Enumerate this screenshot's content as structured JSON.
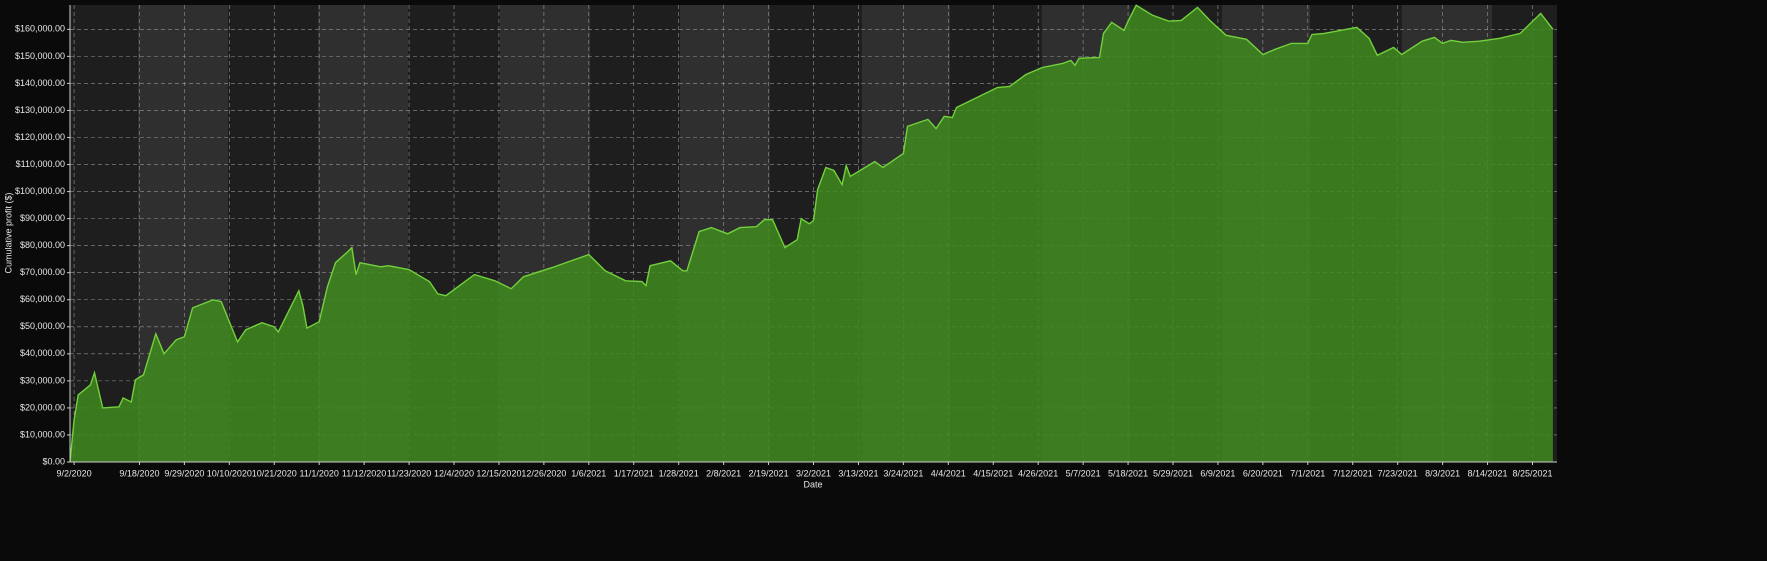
{
  "chart_data": {
    "type": "area",
    "x_label": "Date",
    "y_label": "Cumulative profit ($)",
    "line_color": "#72d13c",
    "fill_color": "#3f8a1f",
    "grid": true,
    "xlim": [
      "2020-09-01",
      "2021-08-31"
    ],
    "ylim": [
      0,
      169000
    ],
    "yticks": [
      {
        "value": 0,
        "label": "$0.00"
      },
      {
        "value": 10000,
        "label": "$10,000.00"
      },
      {
        "value": 20000,
        "label": "$20,000.00"
      },
      {
        "value": 30000,
        "label": "$30,000.00"
      },
      {
        "value": 40000,
        "label": "$40,000.00"
      },
      {
        "value": 50000,
        "label": "$50,000.00"
      },
      {
        "value": 60000,
        "label": "$60,000.00"
      },
      {
        "value": 70000,
        "label": "$70,000.00"
      },
      {
        "value": 80000,
        "label": "$80,000.00"
      },
      {
        "value": 90000,
        "label": "$90,000.00"
      },
      {
        "value": 100000,
        "label": "$100,000.00"
      },
      {
        "value": 110000,
        "label": "$110,000.00"
      },
      {
        "value": 120000,
        "label": "$120,000.00"
      },
      {
        "value": 130000,
        "label": "$130,000.00"
      },
      {
        "value": 140000,
        "label": "$140,000.00"
      },
      {
        "value": 150000,
        "label": "$150,000.00"
      },
      {
        "value": 160000,
        "label": "$160,000.00"
      }
    ],
    "xticks": [
      {
        "value": "2020-09-02",
        "label": "9/2/2020"
      },
      {
        "value": "2020-09-18",
        "label": "9/18/2020"
      },
      {
        "value": "2020-09-29",
        "label": "9/29/2020"
      },
      {
        "value": "2020-10-10",
        "label": "10/10/2020"
      },
      {
        "value": "2020-10-21",
        "label": "10/21/2020"
      },
      {
        "value": "2020-11-01",
        "label": "11/1/2020"
      },
      {
        "value": "2020-11-12",
        "label": "11/12/2020"
      },
      {
        "value": "2020-11-23",
        "label": "11/23/2020"
      },
      {
        "value": "2020-12-04",
        "label": "12/4/2020"
      },
      {
        "value": "2020-12-15",
        "label": "12/15/2020"
      },
      {
        "value": "2020-12-26",
        "label": "12/26/2020"
      },
      {
        "value": "2021-01-06",
        "label": "1/6/2021"
      },
      {
        "value": "2021-01-17",
        "label": "1/17/2021"
      },
      {
        "value": "2021-01-28",
        "label": "1/28/2021"
      },
      {
        "value": "2021-02-08",
        "label": "2/8/2021"
      },
      {
        "value": "2021-02-19",
        "label": "2/19/2021"
      },
      {
        "value": "2021-03-02",
        "label": "3/2/2021"
      },
      {
        "value": "2021-03-13",
        "label": "3/13/2021"
      },
      {
        "value": "2021-03-24",
        "label": "3/24/2021"
      },
      {
        "value": "2021-04-04",
        "label": "4/4/2021"
      },
      {
        "value": "2021-04-15",
        "label": "4/15/2021"
      },
      {
        "value": "2021-04-26",
        "label": "4/26/2021"
      },
      {
        "value": "2021-05-07",
        "label": "5/7/2021"
      },
      {
        "value": "2021-05-18",
        "label": "5/18/2021"
      },
      {
        "value": "2021-05-29",
        "label": "5/29/2021"
      },
      {
        "value": "2021-06-09",
        "label": "6/9/2021"
      },
      {
        "value": "2021-06-20",
        "label": "6/20/2021"
      },
      {
        "value": "2021-07-01",
        "label": "7/1/2021"
      },
      {
        "value": "2021-07-12",
        "label": "7/12/2021"
      },
      {
        "value": "2021-07-23",
        "label": "7/23/2021"
      },
      {
        "value": "2021-08-03",
        "label": "8/3/2021"
      },
      {
        "value": "2021-08-14",
        "label": "8/14/2021"
      },
      {
        "value": "2021-08-25",
        "label": "8/25/2021"
      }
    ],
    "x": [
      "2020-09-01",
      "2020-09-02",
      "2020-09-03",
      "2020-09-06",
      "2020-09-07",
      "2020-09-09",
      "2020-09-13",
      "2020-09-14",
      "2020-09-16",
      "2020-09-17",
      "2020-09-19",
      "2020-09-22",
      "2020-09-24",
      "2020-09-27",
      "2020-09-29",
      "2020-10-01",
      "2020-10-06",
      "2020-10-08",
      "2020-10-12",
      "2020-10-14",
      "2020-10-18",
      "2020-10-21",
      "2020-10-22",
      "2020-10-27",
      "2020-10-28",
      "2020-10-29",
      "2020-11-01",
      "2020-11-03",
      "2020-11-05",
      "2020-11-08",
      "2020-11-09",
      "2020-11-10",
      "2020-11-11",
      "2020-11-16",
      "2020-11-18",
      "2020-11-23",
      "2020-11-28",
      "2020-11-30",
      "2020-12-02",
      "2020-12-09",
      "2020-12-14",
      "2020-12-18",
      "2020-12-21",
      "2020-12-28",
      "2021-01-06",
      "2021-01-10",
      "2021-01-15",
      "2021-01-19",
      "2021-01-20",
      "2021-01-21",
      "2021-01-26",
      "2021-01-29",
      "2021-01-30",
      "2021-02-02",
      "2021-02-05",
      "2021-02-09",
      "2021-02-12",
      "2021-02-16",
      "2021-02-18",
      "2021-02-20",
      "2021-02-23",
      "2021-02-26",
      "2021-02-27",
      "2021-03-01",
      "2021-03-02",
      "2021-03-03",
      "2021-03-05",
      "2021-03-07",
      "2021-03-09",
      "2021-03-10",
      "2021-03-11",
      "2021-03-17",
      "2021-03-19",
      "2021-03-24",
      "2021-03-25",
      "2021-03-30",
      "2021-04-01",
      "2021-04-03",
      "2021-04-05",
      "2021-04-06",
      "2021-04-16",
      "2021-04-19",
      "2021-04-23",
      "2021-04-27",
      "2021-05-02",
      "2021-05-04",
      "2021-05-05",
      "2021-05-06",
      "2021-05-11",
      "2021-05-12",
      "2021-05-14",
      "2021-05-17",
      "2021-05-18",
      "2021-05-20",
      "2021-05-24",
      "2021-05-28",
      "2021-05-31",
      "2021-06-04",
      "2021-06-07",
      "2021-06-11",
      "2021-06-16",
      "2021-06-20",
      "2021-06-23",
      "2021-06-27",
      "2021-07-01",
      "2021-07-02",
      "2021-07-05",
      "2021-07-13",
      "2021-07-16",
      "2021-07-18",
      "2021-07-22",
      "2021-07-24",
      "2021-07-29",
      "2021-08-01",
      "2021-08-03",
      "2021-08-05",
      "2021-08-08",
      "2021-08-12",
      "2021-08-17",
      "2021-08-22",
      "2021-08-27",
      "2021-08-30"
    ],
    "values": [
      0,
      15600,
      24800,
      28500,
      33000,
      20000,
      20400,
      23700,
      22200,
      30400,
      32200,
      47400,
      40000,
      45200,
      46300,
      57000,
      60000,
      59300,
      44400,
      48900,
      51500,
      50000,
      48100,
      63300,
      57800,
      49500,
      51900,
      64800,
      73700,
      77800,
      79300,
      69300,
      73700,
      72200,
      72600,
      71100,
      66700,
      62200,
      61500,
      69300,
      67000,
      64100,
      68500,
      71900,
      76700,
      70700,
      67000,
      66700,
      65200,
      72600,
      74400,
      70700,
      70700,
      85200,
      86700,
      84400,
      86700,
      87000,
      89600,
      89600,
      79300,
      82200,
      90000,
      88100,
      89300,
      100700,
      108900,
      107800,
      102600,
      109600,
      105600,
      111100,
      108900,
      114100,
      124100,
      126700,
      123300,
      127800,
      127400,
      131100,
      138500,
      138900,
      143300,
      145900,
      147400,
      148500,
      146700,
      149300,
      149600,
      158500,
      162600,
      159600,
      163000,
      168900,
      165200,
      163000,
      163300,
      168100,
      163300,
      157800,
      156300,
      150700,
      152600,
      154800,
      154800,
      158100,
      158500,
      160700,
      156700,
      150400,
      153300,
      150700,
      155600,
      157000,
      154800,
      155900,
      155200,
      155600,
      156700,
      158500,
      165900,
      160000
    ]
  }
}
